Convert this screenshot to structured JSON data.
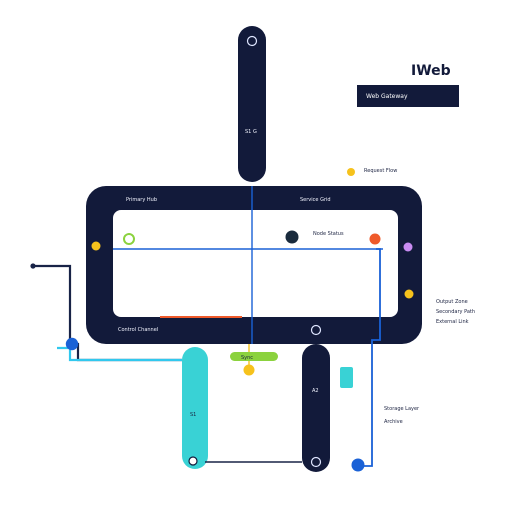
{
  "colors": {
    "navy": "#121a3a",
    "navy_soft": "#182347",
    "panel": "#ffffff",
    "blue": "#1a61d6",
    "cyan": "#31c8ee",
    "orange": "#ef5a2a",
    "yellow": "#f6c21c",
    "purple": "#c98cf2",
    "green": "#8bd23e",
    "teal": "#39d2d5"
  },
  "brand": {
    "logo": "IWeb"
  },
  "labels": {
    "title_box": "Web Gateway",
    "top_note": "Request Flow",
    "top_left_caption": "Primary Hub",
    "top_right_caption": "Service Grid",
    "center_note": "Node Status",
    "bottom_left_caption": "Control Channel",
    "center_tag": "Sync",
    "right_note_1": "Output Zone",
    "right_note_2": "Secondary Path",
    "right_note_3": "External Link",
    "bottom_note_1": "Storage Layer",
    "bottom_note_2": "Archive",
    "pillar_text": "S1",
    "dark_pillar_text": "A2"
  }
}
